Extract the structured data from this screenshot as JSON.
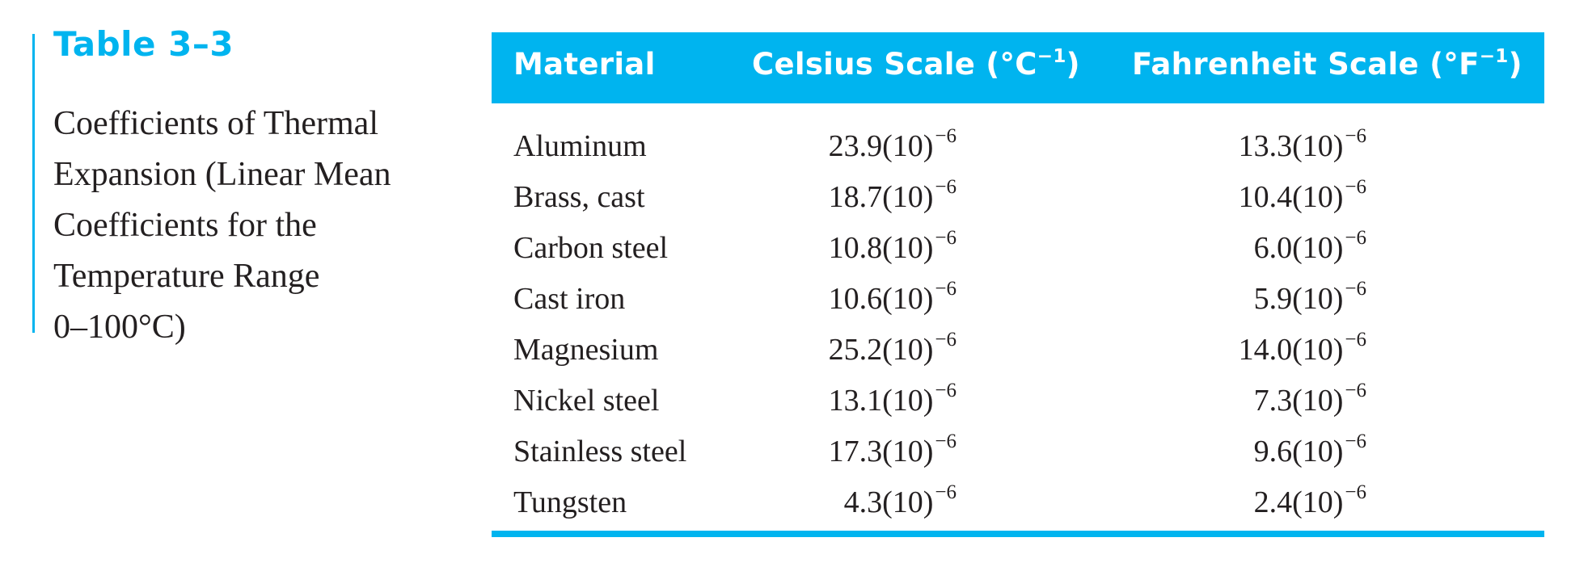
{
  "table": {
    "label": "Table 3–3",
    "caption_lines": [
      "Coefficients of Thermal",
      "Expansion (Linear Mean",
      "Coefficients for the",
      "Temperature Range",
      "0–100°C)"
    ],
    "headers": {
      "material": "Material",
      "celsius": "Celsius Scale (°C",
      "celsius_exp": "−1",
      "celsius_close": ")",
      "fahrenheit": "Fahrenheit Scale (°F",
      "fahrenheit_exp": "−1",
      "fahrenheit_close": ")"
    },
    "rows": [
      {
        "material": "Aluminum",
        "celsius": "23.9(10)",
        "celsius_exp": "−6",
        "fahrenheit": "13.3(10)",
        "fahrenheit_exp": "−6"
      },
      {
        "material": "Brass, cast",
        "celsius": "18.7(10)",
        "celsius_exp": "−6",
        "fahrenheit": "10.4(10)",
        "fahrenheit_exp": "−6"
      },
      {
        "material": "Carbon steel",
        "celsius": "10.8(10)",
        "celsius_exp": "−6",
        "fahrenheit": "6.0(10)",
        "fahrenheit_exp": "−6"
      },
      {
        "material": "Cast iron",
        "celsius": "10.6(10)",
        "celsius_exp": "−6",
        "fahrenheit": "5.9(10)",
        "fahrenheit_exp": "−6"
      },
      {
        "material": "Magnesium",
        "celsius": "25.2(10)",
        "celsius_exp": "−6",
        "fahrenheit": "14.0(10)",
        "fahrenheit_exp": "−6"
      },
      {
        "material": "Nickel steel",
        "celsius": "13.1(10)",
        "celsius_exp": "−6",
        "fahrenheit": "7.3(10)",
        "fahrenheit_exp": "−6"
      },
      {
        "material": "Stainless steel",
        "celsius": "17.3(10)",
        "celsius_exp": "−6",
        "fahrenheit": "9.6(10)",
        "fahrenheit_exp": "−6"
      },
      {
        "material": "Tungsten",
        "celsius": "4.3(10)",
        "celsius_exp": "−6",
        "fahrenheit": "2.4(10)",
        "fahrenheit_exp": "−6"
      }
    ]
  },
  "colors": {
    "accent": "#00b4ef",
    "text": "#231f20",
    "header_text": "#ffffff"
  }
}
